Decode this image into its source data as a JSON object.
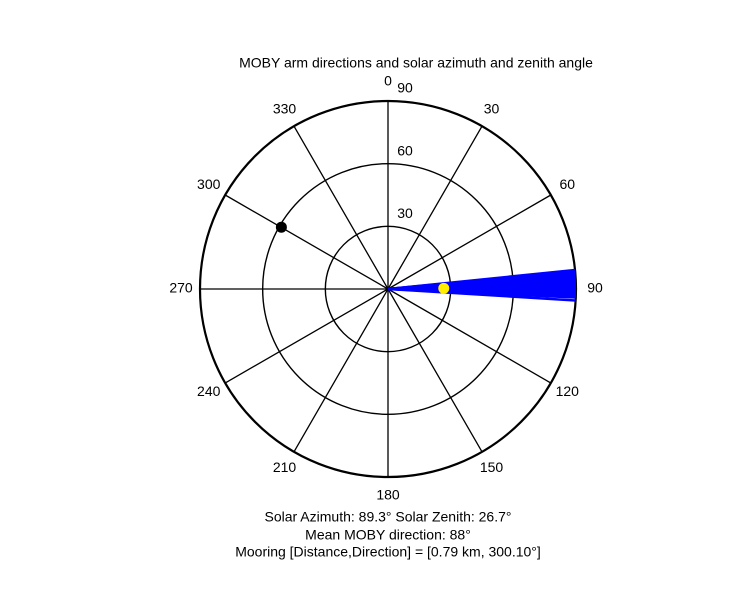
{
  "chart_data": {
    "type": "polar",
    "title": "MOBY arm directions and solar azimuth and zenith angle",
    "rlim": [
      0,
      90
    ],
    "rticks": [
      30,
      60,
      90
    ],
    "thetaticks": [
      0,
      30,
      60,
      90,
      120,
      150,
      180,
      210,
      240,
      270,
      300,
      330
    ],
    "series": [
      {
        "color": "#0000ff",
        "style": "line",
        "theta": [
          84.2,
          84.6,
          85,
          85.4,
          85.8,
          86.2,
          86.6,
          87,
          87.4,
          87.8,
          88.2,
          88.6,
          89,
          89.4,
          89.8,
          90.2,
          90.6,
          91,
          91.4,
          91.8,
          92.2,
          92.6,
          93.5
        ],
        "r": [
          90,
          90,
          90,
          90,
          90,
          90,
          90,
          90,
          90,
          90,
          90,
          90,
          90,
          90,
          90,
          90,
          90,
          90,
          90,
          90,
          90,
          90,
          90
        ]
      },
      {
        "color": "#ffee00",
        "style": "dot",
        "theta": [
          89.3
        ],
        "r": [
          26.7
        ]
      },
      {
        "color": "#000000",
        "style": "dot",
        "theta": [
          300.1
        ],
        "r": [
          59
        ]
      }
    ],
    "annotations": [
      "Solar Azimuth: 89.3°   Solar Zenith: 26.7°",
      "Mean MOBY direction: 88°",
      "Mooring [Distance,Direction] = [0.79 km, 300.10°]"
    ]
  }
}
